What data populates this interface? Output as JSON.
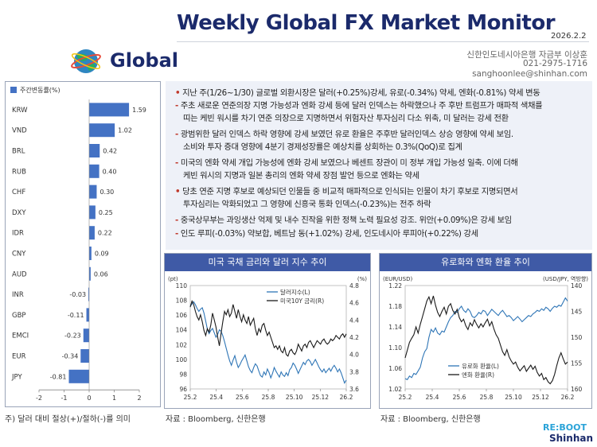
{
  "header": {
    "title": "Weekly Global FX Market Monitor",
    "date": "2026.2.2",
    "section": "Global",
    "contact": {
      "dept": "신한인도네시아은행 자금부 이상훈",
      "phone": "021-2975-1716",
      "email": "sanghoonlee@shinhan.com"
    }
  },
  "bullets": [
    {
      "mark": "•",
      "text": "지난 주(1/26~1/30) 글로벌 외환시장은 달러(+0.25%)강세, 유로(-0.34%) 약세, 엔화(-0.81%) 약세 변동"
    },
    {
      "mark": "-",
      "text": "주초 새로운 연준의장 지명 가능성과 엔화 강세 등에 달러 인덱스는 하락했으나 주 후반 트럼프가 매파적 색채를"
    },
    {
      "mark": "",
      "text": "띠는 케빈 워시를 차기 연준 의장으로 지명하면서 위험자산 투자심리 다소 위축, 미 달러는 강세 전환"
    },
    {
      "mark": "-",
      "text": "광범위한 달러 인덱스 하락 영향에 강세 보였던 유로 환율은 주후반 달러인덱스 상승 영향에 약세 보임."
    },
    {
      "mark": "",
      "text": "소비와 투자 증대 영향에 4분기 경제성장률은 예상치를 상회하는 0.3%(QoQ)로 집계"
    },
    {
      "mark": "-",
      "text": "미국의 엔화 약세 개입 가능성에 엔화 강세 보였으나 베센트 장관이 미 정부 개입 가능성 일축. 이에 더해"
    },
    {
      "mark": "",
      "text": "케빈 워시의 지명과 일본 총리의 엔화 약세 장점 발언 등으로 엔화는 약세"
    },
    {
      "mark": "•",
      "text": "당초 연준 지명 후보로 예상되던 인물들 중 비교적 매파적으로 인식되는 인물이 차기 후보로 지명되면서"
    },
    {
      "mark": "",
      "text": "투자심리는 악화되었고 그 영향에 신흥국 통화 인덱스(-0.23%)는 전주 하락"
    },
    {
      "mark": "-",
      "text": "중국상무부는 과잉생산 억제 및 내수 진작을 위한 정책 노력 필요성 강조. 위안(+0.09%)은 강세 보임"
    },
    {
      "mark": "-",
      "text": "인도 루피(-0.03%) 약보합, 베트남 동(+1.02%) 강세, 인도네시아 루피아(+0.22%) 강세"
    }
  ],
  "bar_chart": {
    "legend": "주간변동률(%)",
    "note": "주) 달러 대비 절상(+)/절하(-)를 의미",
    "color": "#4472c4"
  },
  "chart_data": [
    {
      "type": "bar",
      "orientation": "horizontal",
      "categories": [
        "KRW",
        "VND",
        "BRL",
        "RUB",
        "CHF",
        "DXY",
        "IDR",
        "CNY",
        "AUD",
        "INR",
        "GBP",
        "EMCI",
        "EUR",
        "JPY"
      ],
      "values": [
        1.59,
        1.02,
        0.42,
        0.4,
        0.3,
        0.25,
        0.22,
        0.09,
        0.06,
        -0.03,
        -0.11,
        -0.23,
        -0.34,
        -0.81
      ],
      "value_labels": [
        "1.59",
        "1.02",
        "0.42",
        "0.40",
        "0.30",
        "0.25",
        "0.22",
        "0.09",
        "0.06",
        "-0.03",
        "-0.11",
        "-0.23",
        "-0.34",
        "-0.81"
      ],
      "xlim": [
        -2,
        2
      ],
      "xticks": [
        "-2",
        "-1",
        "0",
        "1",
        "2"
      ],
      "legend": "주간변동률(%)"
    },
    {
      "type": "line",
      "title": "미국 국채 금리와 달러 지수 추이",
      "x_ticks": [
        "25.2",
        "25.4",
        "25.6",
        "25.8",
        "25.10",
        "25.12",
        "26.2"
      ],
      "left_axis": {
        "unit": "(pt)",
        "range": [
          96,
          110
        ],
        "ticks": [
          "96",
          "98",
          "100",
          "102",
          "104",
          "106",
          "108",
          "110"
        ]
      },
      "right_axis": {
        "unit": "(%)",
        "range": [
          3.6,
          4.8
        ],
        "ticks": [
          "3.6",
          "3.8",
          "4.0",
          "4.2",
          "4.4",
          "4.6",
          "4.8"
        ]
      },
      "series": [
        {
          "name": "달러지수(L)",
          "axis": "left",
          "color": "#2e75b6",
          "values": [
            107.2,
            107.5,
            107.8,
            107.4,
            106.9,
            106.5,
            106.8,
            107.0,
            106.3,
            105.2,
            104.1,
            103.5,
            103.9,
            104.2,
            103.6,
            103.0,
            103.4,
            104.0,
            103.8,
            103.2,
            102.4,
            101.5,
            100.6,
            99.8,
            99.2,
            99.9,
            100.5,
            99.6,
            98.9,
            99.3,
            99.8,
            100.2,
            100.6,
            99.8,
            99.0,
            98.5,
            98.2,
            98.9,
            99.4,
            99.1,
            98.4,
            97.8,
            97.6,
            98.3,
            97.9,
            98.7,
            98.2,
            97.5,
            98.1,
            98.9,
            98.4,
            98.0,
            97.6,
            98.3,
            97.9,
            97.7,
            98.2,
            97.8,
            98.6,
            98.9,
            99.5,
            99.2,
            98.7,
            98.1,
            98.6,
            99.1,
            99.6,
            99.3,
            99.8,
            100.0,
            99.7,
            99.2,
            99.6,
            100.0,
            99.5,
            99.0,
            98.6,
            98.3,
            98.7,
            98.2,
            98.5,
            98.8,
            98.4,
            98.9,
            99.2,
            98.8,
            98.3,
            98.7,
            98.2,
            97.5,
            96.8,
            97.2
          ]
        },
        {
          "name": "미국10Y 금리(R)",
          "axis": "right",
          "color": "#1a1a1a",
          "values": [
            4.55,
            4.62,
            4.58,
            4.5,
            4.44,
            4.4,
            4.46,
            4.38,
            4.28,
            4.22,
            4.3,
            4.26,
            4.34,
            4.48,
            4.4,
            4.32,
            4.2,
            4.1,
            4.25,
            4.38,
            4.5,
            4.46,
            4.52,
            4.44,
            4.48,
            4.58,
            4.5,
            4.42,
            4.52,
            4.44,
            4.38,
            4.46,
            4.4,
            4.36,
            4.44,
            4.34,
            4.38,
            4.42,
            4.3,
            4.22,
            4.3,
            4.26,
            4.34,
            4.36,
            4.28,
            4.22,
            4.26,
            4.2,
            4.14,
            4.08,
            4.1,
            4.06,
            4.1,
            4.04,
            4.02,
            4.08,
            4.0,
            3.98,
            4.04,
            4.06,
            4.02,
            4.0,
            4.04,
            4.12,
            4.08,
            4.04,
            4.1,
            4.12,
            4.08,
            4.14,
            4.16,
            4.12,
            4.08,
            4.12,
            4.16,
            4.14,
            4.12,
            4.16,
            4.18,
            4.14,
            4.12,
            4.14,
            4.18,
            4.16,
            4.18,
            4.22,
            4.2,
            4.18,
            4.22,
            4.24,
            4.2,
            4.24
          ]
        }
      ],
      "source": "자료 : Bloomberg, 신한은행"
    },
    {
      "type": "line",
      "title": "유로화와 엔화 환율 추이",
      "x_ticks": [
        "25.2",
        "25.4",
        "25.6",
        "25.8",
        "25.10",
        "25.12",
        "26.2"
      ],
      "left_axis": {
        "unit": "(EUR/USD)",
        "range": [
          1.02,
          1.22
        ],
        "ticks": [
          "1.02",
          "1.06",
          "1.10",
          "1.14",
          "1.18",
          "1.22"
        ]
      },
      "right_axis": {
        "unit": "(USD/JPY, 역방향)",
        "range": [
          140,
          160
        ],
        "inverted": true,
        "ticks": [
          "140",
          "145",
          "150",
          "155",
          "160"
        ]
      },
      "series": [
        {
          "name": "유로화 환율(L)",
          "axis": "left",
          "color": "#2e75b6",
          "values": [
            1.04,
            1.038,
            1.045,
            1.042,
            1.05,
            1.048,
            1.055,
            1.062,
            1.08,
            1.092,
            1.098,
            1.12,
            1.135,
            1.13,
            1.138,
            1.128,
            1.125,
            1.132,
            1.13,
            1.14,
            1.15,
            1.158,
            1.162,
            1.17,
            1.168,
            1.175,
            1.18,
            1.172,
            1.168,
            1.175,
            1.17,
            1.16,
            1.158,
            1.162,
            1.168,
            1.165,
            1.172,
            1.17,
            1.162,
            1.168,
            1.174,
            1.17,
            1.166,
            1.162,
            1.168,
            1.172,
            1.166,
            1.16,
            1.162,
            1.158,
            1.152,
            1.156,
            1.16,
            1.155,
            1.15,
            1.154,
            1.158,
            1.162,
            1.16,
            1.165,
            1.168,
            1.172,
            1.17,
            1.175,
            1.172,
            1.178,
            1.175,
            1.17,
            1.176,
            1.18,
            1.178,
            1.182,
            1.18,
            1.188,
            1.196,
            1.19
          ]
        },
        {
          "name": "엔화 환율(R)",
          "axis": "right",
          "color": "#1a1a1a",
          "values": [
            154.0,
            152.5,
            151.0,
            150.2,
            149.5,
            148.0,
            149.2,
            147.5,
            146.0,
            144.5,
            143.0,
            142.2,
            143.5,
            142.0,
            143.8,
            145.2,
            146.0,
            145.0,
            144.2,
            145.5,
            144.0,
            143.5,
            144.8,
            145.5,
            144.6,
            146.2,
            147.0,
            146.5,
            147.8,
            148.5,
            147.2,
            147.8,
            146.6,
            147.5,
            148.2,
            147.4,
            148.0,
            147.2,
            146.5,
            147.8,
            147.0,
            148.4,
            149.5,
            150.2,
            151.5,
            152.8,
            153.5,
            152.4,
            153.8,
            154.6,
            155.2,
            154.8,
            155.8,
            156.5,
            156.0,
            155.5,
            156.6,
            156.0,
            155.4,
            156.2,
            155.6,
            156.8,
            157.5,
            157.0,
            158.2,
            157.8,
            158.6,
            159.0,
            158.4,
            157.2,
            155.5,
            154.0,
            153.0,
            154.2,
            155.2,
            154.8
          ]
        }
      ],
      "source": "자료 : Bloomberg, 신한은행"
    }
  ],
  "footer": {
    "logo_top": "RE:BOOT",
    "logo_bottom": "Shinhan"
  }
}
